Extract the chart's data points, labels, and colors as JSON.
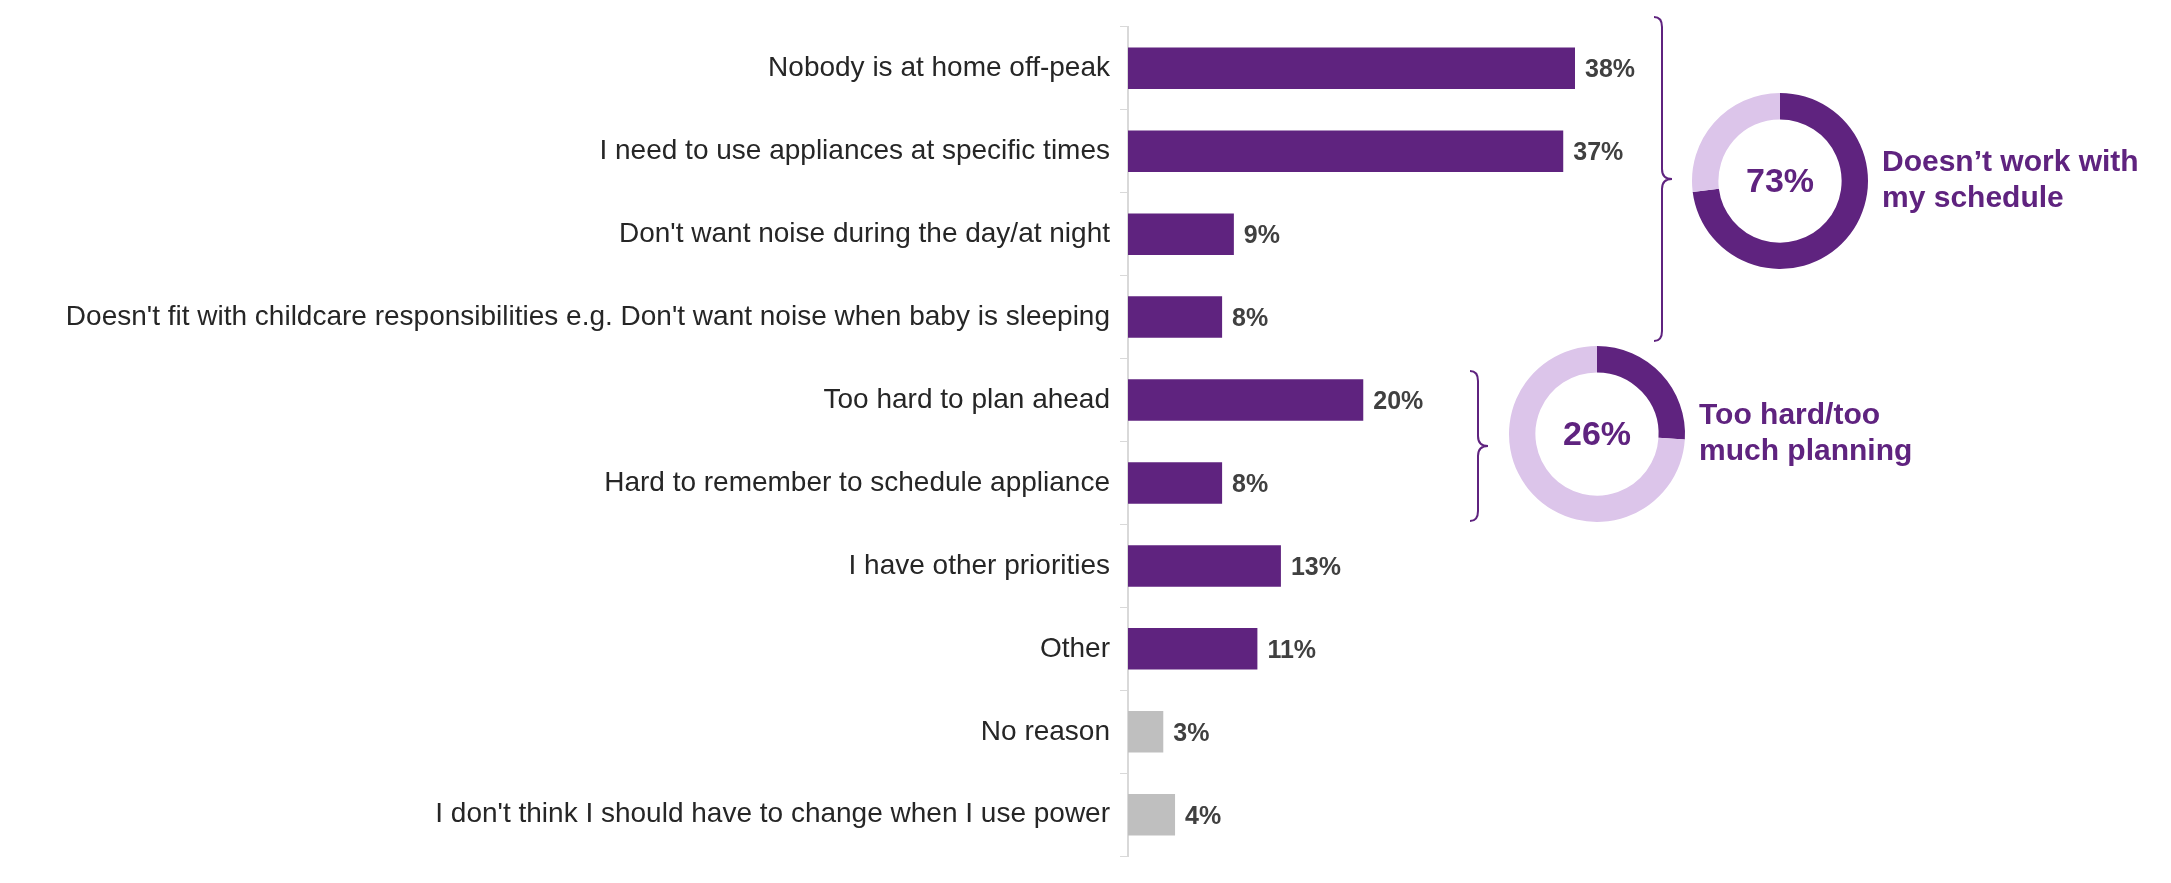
{
  "chart_data": [
    {
      "type": "bar",
      "orientation": "horizontal",
      "categories": [
        "Nobody is at home off-peak",
        "I need to use appliances at specific times",
        "Don't want noise during the day/at night",
        "Doesn't fit with childcare responsibilities e.g. Don't want noise when baby is sleeping",
        "Too hard to plan ahead",
        "Hard to remember to schedule appliance",
        "I have other priorities",
        "Other",
        "No reason",
        "I don't think I should have to change when I use power"
      ],
      "values": [
        38,
        37,
        9,
        8,
        20,
        8,
        13,
        11,
        3,
        4
      ],
      "colors": [
        "#5f237f",
        "#5f237f",
        "#5f237f",
        "#5f237f",
        "#5f237f",
        "#5f237f",
        "#5f237f",
        "#5f237f",
        "#bfbfbf",
        "#bfbfbf"
      ],
      "value_labels": [
        "38%",
        "37%",
        "9%",
        "8%",
        "20%",
        "8%",
        "13%",
        "11%",
        "3%",
        "4%"
      ]
    },
    {
      "type": "donut",
      "categories": [
        null,
        null
      ],
      "values": [
        73,
        27
      ],
      "colors": [
        "#5f237f",
        "#dcc5ea"
      ],
      "value_labels": [
        "73%",
        null
      ],
      "annotations": [
        "Doesn’t work with\nmy schedule"
      ]
    },
    {
      "type": "donut",
      "categories": [
        null,
        null
      ],
      "values": [
        26,
        74
      ],
      "colors": [
        "#5f237f",
        "#dcc5ea"
      ],
      "value_labels": [
        "26%",
        null
      ],
      "annotations": [
        "Too hard/too\nmuch planning"
      ]
    }
  ]
}
